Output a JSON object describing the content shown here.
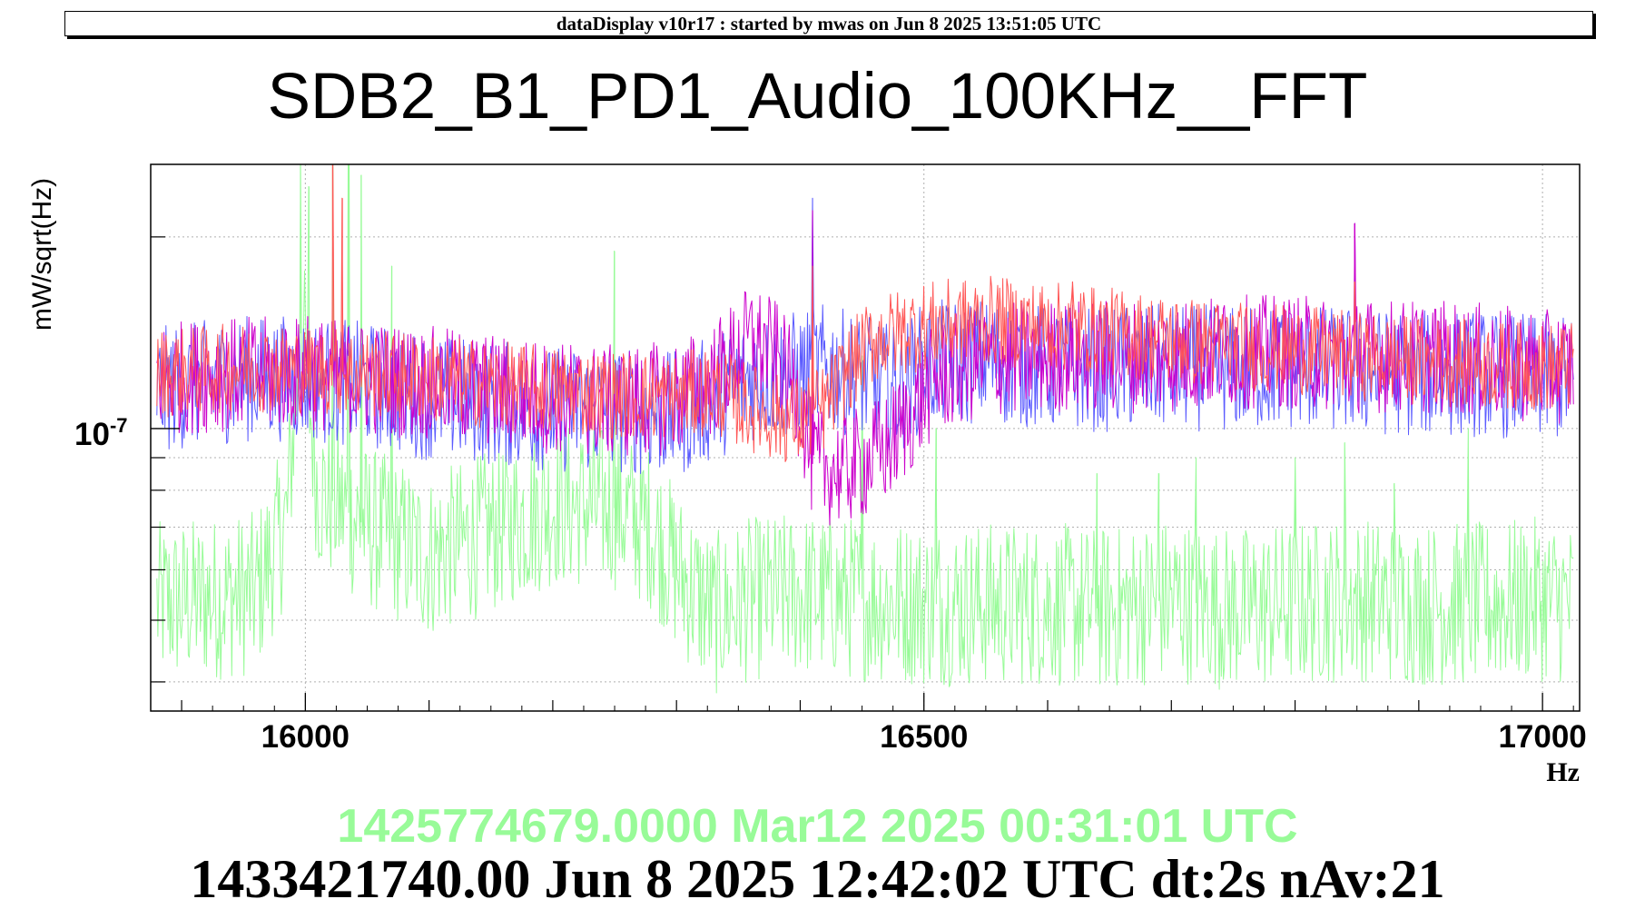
{
  "banner": "dataDisplay v10r17 : started by mwas on Jun  8 2025 13:51:05 UTC",
  "footer": {
    "reference_time": "1425774679.0000 Mar12 2025 00:31:01 UTC",
    "current_time": "1433421740.00 Jun 8 2025 12:42:02 UTC dt:2s nAv:21"
  },
  "colors": {
    "green": "#98fb98",
    "blue": "#5b5bff",
    "magenta": "#cc00cc",
    "red": "#ff5555",
    "grid": "#b0b0b0"
  },
  "chart_data": {
    "type": "line",
    "title": "SDB2_B1_PD1_Audio_100KHz__FFT",
    "xlabel": "Hz",
    "ylabel": "mW/sqrt(Hz)",
    "xlim": [
      15875,
      17030
    ],
    "ylim": [
      3.6e-08,
      2.6e-07
    ],
    "ylog": true,
    "grid": true,
    "x_ticks": [
      16000,
      16500,
      17000
    ],
    "y_tick_labels": [
      {
        "base": "10",
        "exp": "-7",
        "value": 1e-07
      }
    ],
    "y_minor_ticks": [
      4e-08,
      5e-08,
      6e-08,
      7e-08,
      8e-08,
      9e-08,
      2e-07
    ],
    "series": [
      {
        "color": "#98fb98",
        "points": [
          [
            15880,
            5.3e-08
          ],
          [
            15920,
            5.4e-08
          ],
          [
            15960,
            5.5e-08
          ],
          [
            15985,
            7.2e-08
          ],
          [
            15997,
            1.5e-07
          ],
          [
            16010,
            8e-08
          ],
          [
            16030,
            7.5e-08
          ],
          [
            16050,
            7e-08
          ],
          [
            16100,
            6.3e-08
          ],
          [
            16150,
            6.9e-08
          ],
          [
            16200,
            7.6e-08
          ],
          [
            16250,
            7.5e-08
          ],
          [
            16280,
            7e-08
          ],
          [
            16300,
            6e-08
          ],
          [
            16330,
            5.1e-08
          ],
          [
            16360,
            5.4e-08
          ],
          [
            16400,
            5.5e-08
          ],
          [
            16450,
            5.4e-08
          ],
          [
            16500,
            5.3e-08
          ],
          [
            16550,
            5.3e-08
          ],
          [
            16600,
            5.3e-08
          ],
          [
            16650,
            5.2e-08
          ],
          [
            16700,
            5.4e-08
          ],
          [
            16750,
            5.2e-08
          ],
          [
            16800,
            5.3e-08
          ],
          [
            16850,
            5.4e-08
          ],
          [
            16900,
            5.3e-08
          ],
          [
            16950,
            5.3e-08
          ],
          [
            17000,
            5.4e-08
          ],
          [
            17030,
            5.3e-08
          ]
        ],
        "spikes": [
          [
            15996,
            2.8e-07
          ],
          [
            16003,
            2.4e-07
          ],
          [
            16022,
            2.7e-07
          ],
          [
            16035,
            2.7e-07
          ],
          [
            16045,
            2.5e-07
          ],
          [
            16070,
            1.8e-07
          ],
          [
            16250,
            1.9e-07
          ],
          [
            16450,
            1.3e-07
          ],
          [
            16510,
            1e-07
          ],
          [
            16640,
            8.5e-08
          ],
          [
            16690,
            8.5e-08
          ],
          [
            16720,
            9e-08
          ],
          [
            16800,
            9e-08
          ],
          [
            16840,
            9.5e-08
          ],
          [
            16880,
            8.2e-08
          ],
          [
            16940,
            1e-07
          ]
        ],
        "noise": 0.13
      },
      {
        "color": "#5b5bff",
        "points": [
          [
            15880,
            1.15e-07
          ],
          [
            15950,
            1.2e-07
          ],
          [
            16000,
            1.2e-07
          ],
          [
            16050,
            1.17e-07
          ],
          [
            16100,
            1.12e-07
          ],
          [
            16150,
            1.1e-07
          ],
          [
            16200,
            1.07e-07
          ],
          [
            16250,
            1.07e-07
          ],
          [
            16300,
            1.05e-07
          ],
          [
            16330,
            1.12e-07
          ],
          [
            16360,
            1.2e-07
          ],
          [
            16400,
            1.22e-07
          ],
          [
            16420,
            1.25e-07
          ],
          [
            16450,
            1.2e-07
          ],
          [
            16480,
            1.15e-07
          ],
          [
            16500,
            1.26e-07
          ],
          [
            16550,
            1.28e-07
          ],
          [
            16600,
            1.25e-07
          ],
          [
            16650,
            1.24e-07
          ],
          [
            16700,
            1.25e-07
          ],
          [
            16750,
            1.24e-07
          ],
          [
            16800,
            1.25e-07
          ],
          [
            16850,
            1.23e-07
          ],
          [
            16900,
            1.22e-07
          ],
          [
            16950,
            1.22e-07
          ],
          [
            17000,
            1.2e-07
          ],
          [
            17030,
            1.2e-07
          ]
        ],
        "spikes": [
          [
            16410,
            2.3e-07
          ],
          [
            16848,
            2.1e-07
          ]
        ],
        "noise": 0.1
      },
      {
        "color": "#cc00cc",
        "points": [
          [
            15880,
            1.2e-07
          ],
          [
            15950,
            1.22e-07
          ],
          [
            16000,
            1.22e-07
          ],
          [
            16050,
            1.2e-07
          ],
          [
            16100,
            1.18e-07
          ],
          [
            16150,
            1.15e-07
          ],
          [
            16200,
            1.12e-07
          ],
          [
            16250,
            1.1e-07
          ],
          [
            16300,
            1.12e-07
          ],
          [
            16330,
            1.2e-07
          ],
          [
            16360,
            1.38e-07
          ],
          [
            16380,
            1.3e-07
          ],
          [
            16400,
            1.1e-07
          ],
          [
            16410,
            8.8e-08
          ],
          [
            16430,
            8.6e-08
          ],
          [
            16450,
            8.8e-08
          ],
          [
            16470,
            9.3e-08
          ],
          [
            16490,
            1.05e-07
          ],
          [
            16510,
            1.2e-07
          ],
          [
            16550,
            1.28e-07
          ],
          [
            16600,
            1.3e-07
          ],
          [
            16650,
            1.3e-07
          ],
          [
            16700,
            1.3e-07
          ],
          [
            16750,
            1.32e-07
          ],
          [
            16800,
            1.32e-07
          ],
          [
            16850,
            1.3e-07
          ],
          [
            16900,
            1.3e-07
          ],
          [
            16950,
            1.28e-07
          ],
          [
            17000,
            1.25e-07
          ],
          [
            17030,
            1.25e-07
          ]
        ],
        "spikes": [
          [
            16410,
            2.2e-07
          ],
          [
            16848,
            2.1e-07
          ],
          [
            16002,
            1.5e-07
          ]
        ],
        "noise": 0.09
      },
      {
        "color": "#ff5555",
        "points": [
          [
            15880,
            1.22e-07
          ],
          [
            15950,
            1.25e-07
          ],
          [
            16000,
            1.24e-07
          ],
          [
            16050,
            1.22e-07
          ],
          [
            16100,
            1.2e-07
          ],
          [
            16150,
            1.17e-07
          ],
          [
            16200,
            1.15e-07
          ],
          [
            16250,
            1.13e-07
          ],
          [
            16300,
            1.12e-07
          ],
          [
            16330,
            1.15e-07
          ],
          [
            16350,
            1.1e-07
          ],
          [
            16380,
            1.04e-07
          ],
          [
            16400,
            1.03e-07
          ],
          [
            16420,
            1.08e-07
          ],
          [
            16440,
            1.25e-07
          ],
          [
            16460,
            1.38e-07
          ],
          [
            16500,
            1.45e-07
          ],
          [
            16550,
            1.48e-07
          ],
          [
            16600,
            1.45e-07
          ],
          [
            16650,
            1.42e-07
          ],
          [
            16700,
            1.38e-07
          ],
          [
            16750,
            1.35e-07
          ],
          [
            16800,
            1.33e-07
          ],
          [
            16850,
            1.3e-07
          ],
          [
            16900,
            1.28e-07
          ],
          [
            16950,
            1.26e-07
          ],
          [
            17000,
            1.25e-07
          ],
          [
            17030,
            1.25e-07
          ]
        ],
        "spikes": [
          [
            16022,
            2.7e-07
          ],
          [
            16030,
            2.3e-07
          ],
          [
            16410,
            1.8e-07
          ],
          [
            16848,
            1.7e-07
          ],
          [
            16620,
            1.7e-07
          ]
        ],
        "noise": 0.07
      }
    ]
  }
}
